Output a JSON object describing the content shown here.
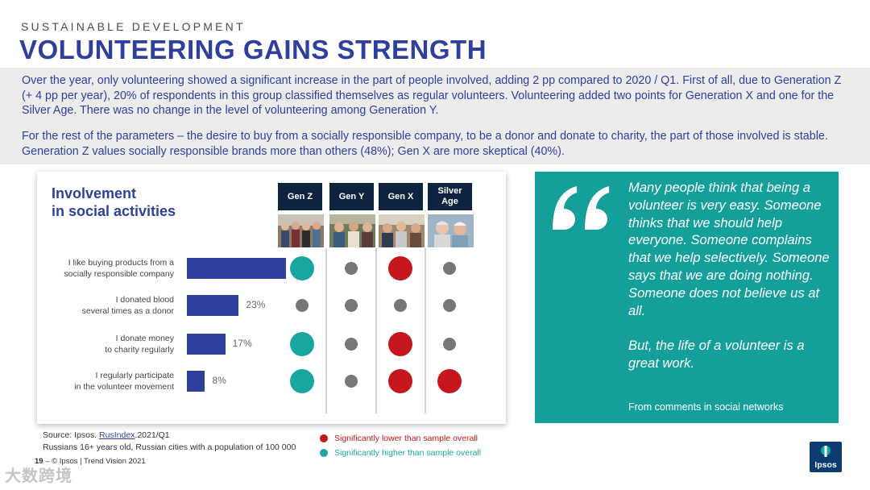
{
  "header": {
    "kicker": "SUSTAINABLE DEVELOPMENT",
    "title": "VOLUNTEERING GAINS STRENGTH"
  },
  "intro": {
    "p1": "Over the year, only volunteering showed a significant increase in the part of people involved, adding 2 pp compared to 2020 / Q1. First of all, due to Generation Z (+ 4 pp per year), 20% of respondents in this group classified themselves as regular volunteers. Volunteering added two points for Generation X and one for the Silver Age. There was no change in the level of volunteering among Generation Y.",
    "p2": "For the rest of the parameters – the desire to buy from a socially responsible company, to be a donor and donate to charity, the part of those involved is stable. Generation Z values socially responsible brands more than others (48%); Gen X are more skeptical (40%)."
  },
  "chart_card": {
    "title": "Involvement\nin social activities"
  },
  "chart_data": {
    "type": "bar",
    "title": "Involvement in social activities",
    "orientation": "horizontal",
    "categories": [
      "I like buying products from a\nsocially responsible company",
      "I donated blood\nseveral times as a donor",
      "I donate money\nto charity regularly",
      "I regularly participate\nin the volunteer movement"
    ],
    "values": [
      44,
      23,
      17,
      8
    ],
    "value_labels": [
      "44%",
      "23%",
      "17%",
      "8%"
    ],
    "unit": "%",
    "xlim": [
      0,
      50
    ],
    "generations": [
      "Gen Z",
      "Gen Y",
      "Gen X",
      "Silver\nAge"
    ],
    "significance": [
      [
        "higher",
        "none",
        "lower",
        "none"
      ],
      [
        "none",
        "none",
        "none",
        "none"
      ],
      [
        "higher",
        "none",
        "lower",
        "none"
      ],
      [
        "higher",
        "none",
        "lower",
        "lower"
      ]
    ],
    "colors": {
      "bar": "#2f3f9e",
      "higher": "#1aa6a0",
      "lower": "#c4161c",
      "none": "#777777"
    }
  },
  "quote": {
    "text": "Many people think that being a volunteer is very easy. Someone thinks that we should help everyone. Someone complains that we help selectively. Someone says that we are doing nothing. Someone does not believe us at all.\n\nBut, the life of a volunteer is  a great work.",
    "source": "From comments in social networks"
  },
  "source": {
    "prefix": "Source: Ipsos. ",
    "link": "RusIndex",
    "suffix": ".2021/Q1",
    "line2": "Russians 16+ years old, Russian cities with a population of 100 000"
  },
  "legend": {
    "lower": "Significantly lower than sample overall",
    "higher": "Significantly higher than sample overall"
  },
  "footer": {
    "page": "19",
    "text": " –  © Ipsos | Trend Vision 2021"
  },
  "watermark": "大数跨境",
  "logo": {
    "text": "Ipsos"
  }
}
